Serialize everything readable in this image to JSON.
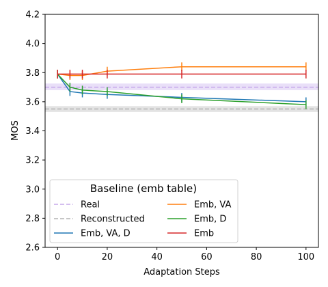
{
  "chart_data": {
    "type": "line",
    "xlabel": "Adaptation Steps",
    "ylabel": "MOS",
    "xlim": [
      -5,
      105
    ],
    "ylim": [
      2.6,
      4.2
    ],
    "x_ticks": [
      0,
      20,
      40,
      60,
      80,
      100
    ],
    "y_ticks": [
      2.6,
      2.8,
      3.0,
      3.2,
      3.4,
      3.6,
      3.8,
      4.0,
      4.2
    ],
    "x_tick_labels": [
      "0",
      "20",
      "40",
      "60",
      "80",
      "100"
    ],
    "y_tick_labels": [
      "2.6",
      "2.8",
      "3.0",
      "3.2",
      "3.4",
      "3.6",
      "3.8",
      "4.0",
      "4.2"
    ],
    "grid": false,
    "baselines": [
      {
        "name": "Real",
        "value": 3.7,
        "band": [
          3.68,
          3.725
        ],
        "color": "#c5a8ea",
        "band_color": "#e9dff8"
      },
      {
        "name": "Reconstructed",
        "value": 3.55,
        "band": [
          3.53,
          3.57
        ],
        "color": "#b3b3b3",
        "band_color": "#e3e3e3"
      }
    ],
    "series": [
      {
        "name": "Emb, VA, D",
        "color": "#1f77b4",
        "x": [
          0,
          5,
          10,
          20,
          50,
          100
        ],
        "y": [
          3.79,
          3.67,
          3.66,
          3.65,
          3.63,
          3.6
        ],
        "err": [
          0.03,
          0.03,
          0.03,
          0.03,
          0.03,
          0.03
        ]
      },
      {
        "name": "Emb, VA",
        "color": "#ff7f0e",
        "x": [
          0,
          5,
          10,
          20,
          50,
          100
        ],
        "y": [
          3.79,
          3.78,
          3.78,
          3.81,
          3.84,
          3.84
        ],
        "err": [
          0.03,
          0.03,
          0.03,
          0.03,
          0.03,
          0.03
        ]
      },
      {
        "name": "Emb, D",
        "color": "#2ca02c",
        "x": [
          0,
          5,
          10,
          20,
          50,
          100
        ],
        "y": [
          3.79,
          3.7,
          3.68,
          3.67,
          3.62,
          3.58
        ],
        "err": [
          0.03,
          0.03,
          0.03,
          0.03,
          0.03,
          0.03
        ]
      },
      {
        "name": "Emb",
        "color": "#d62728",
        "x": [
          0,
          5,
          10,
          20,
          50,
          100
        ],
        "y": [
          3.79,
          3.79,
          3.79,
          3.79,
          3.79,
          3.79
        ],
        "err": [
          0.03,
          0.03,
          0.03,
          0.03,
          0.03,
          0.03
        ]
      }
    ],
    "legend": {
      "title": "Baseline (emb table)",
      "placement": "lower-left",
      "entries_col1": [
        "Real",
        "Reconstructed",
        "Emb, VA, D"
      ],
      "entries_col2": [
        "Emb, VA",
        "Emb, D",
        "Emb"
      ]
    }
  }
}
